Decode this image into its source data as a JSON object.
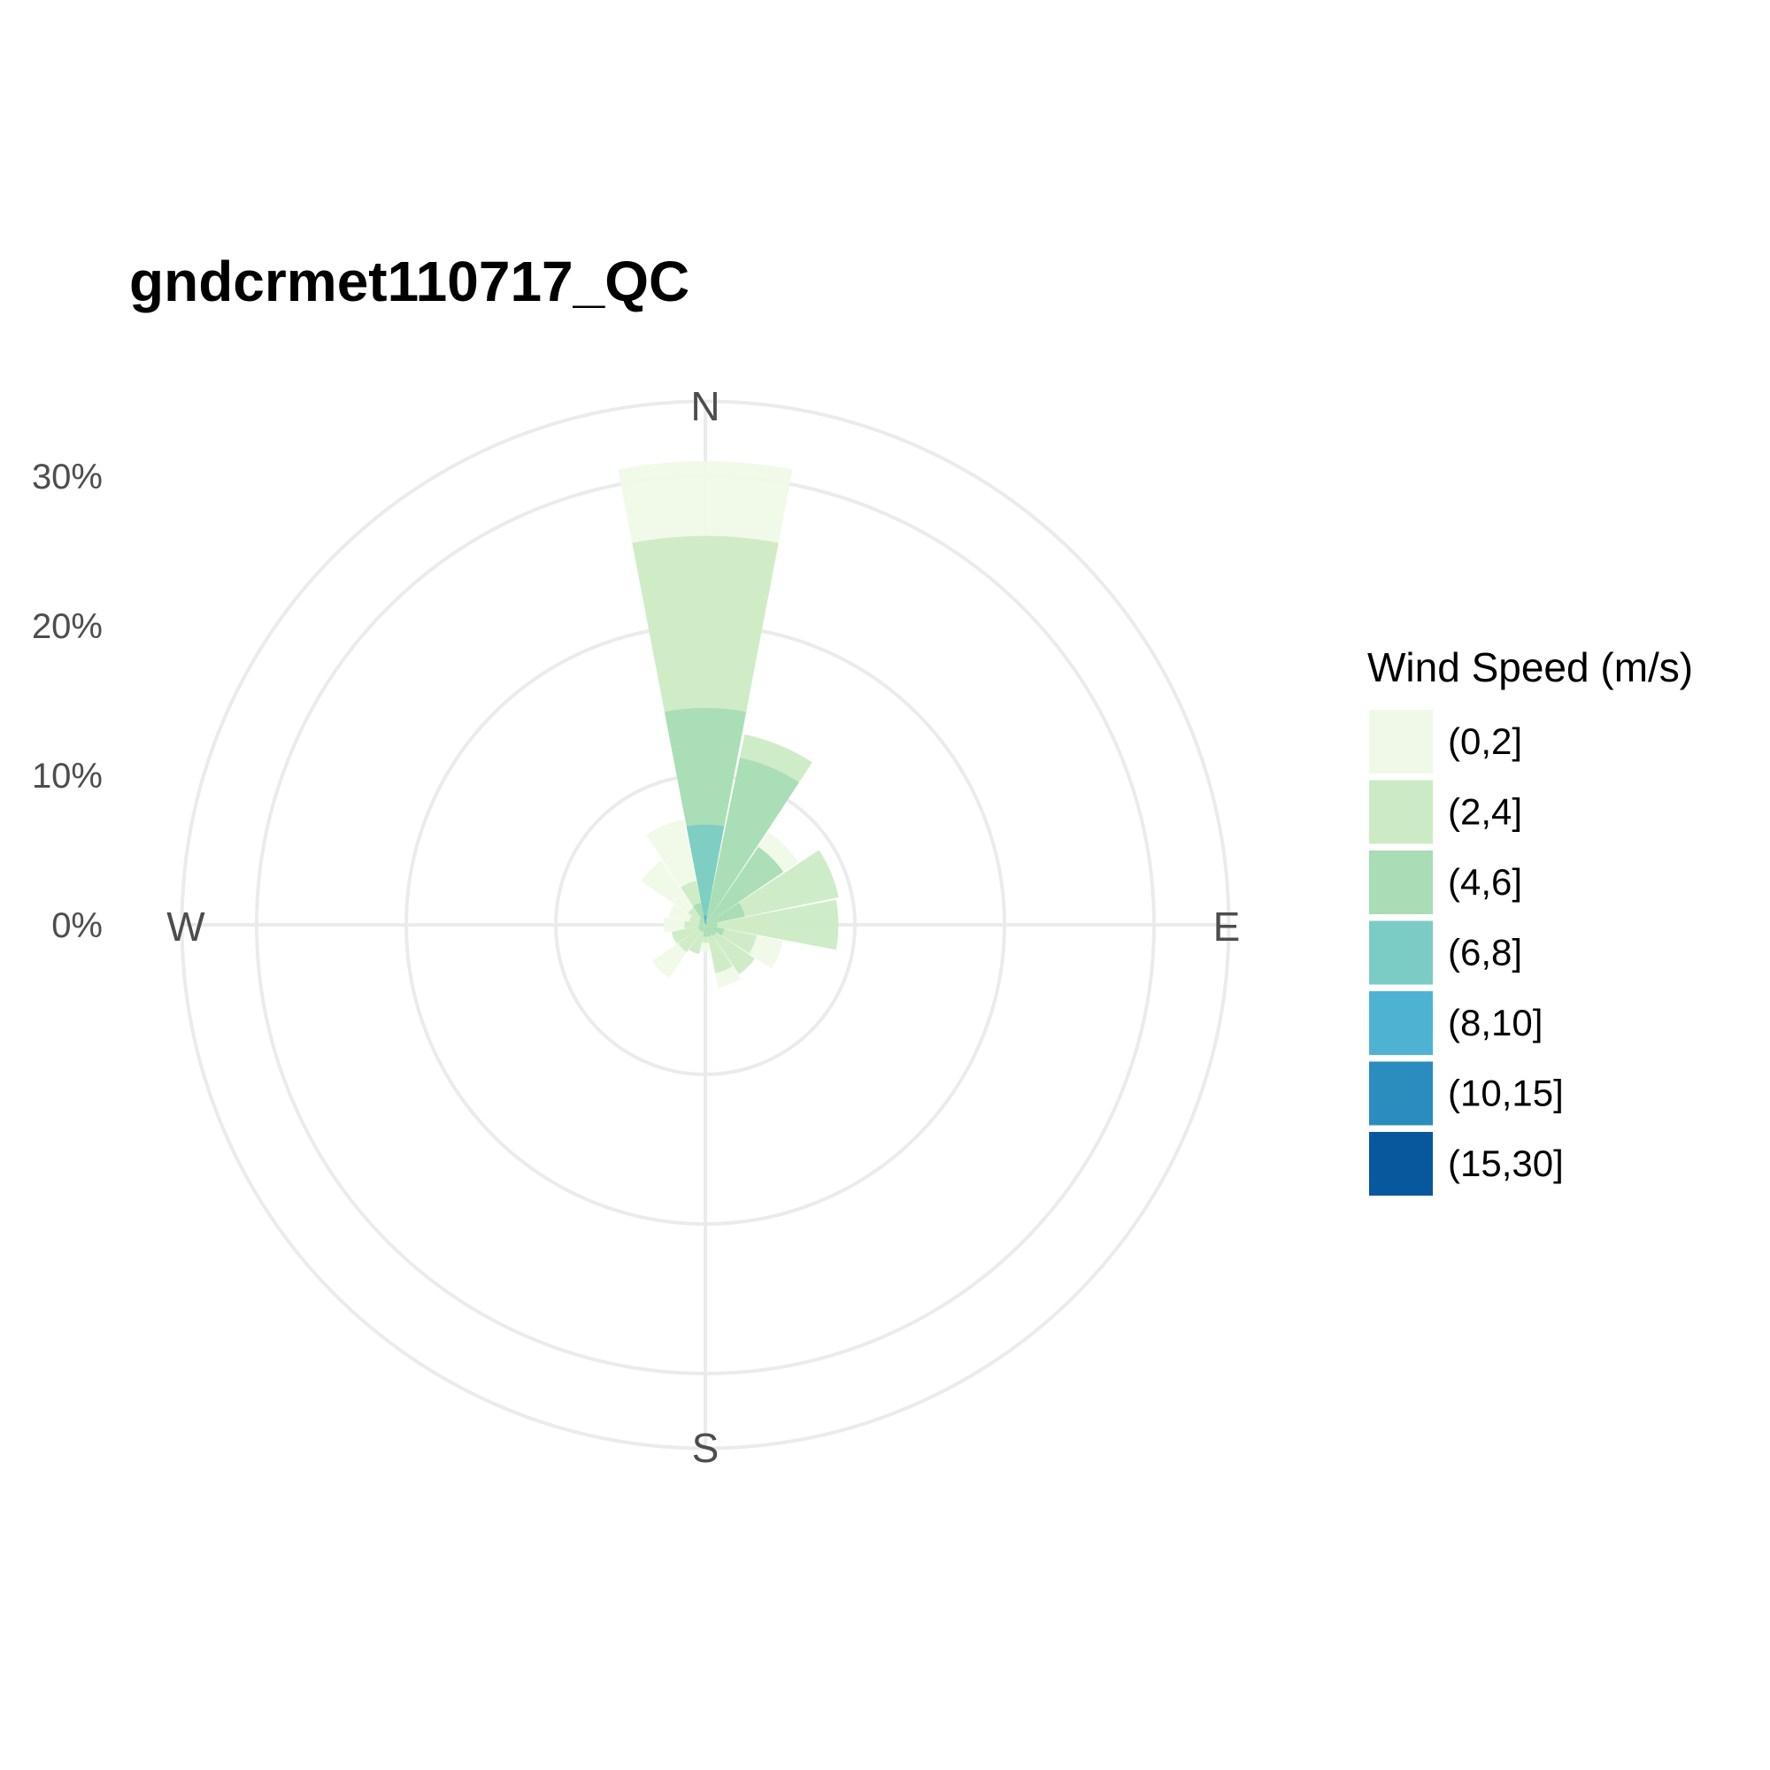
{
  "chart_data": {
    "type": "wind-rose",
    "title": "gndcrmet110717_QC",
    "radial_axis": {
      "ticks": [
        0,
        10,
        20,
        30
      ],
      "tick_labels": [
        "0%",
        "10%",
        "20%",
        "30%"
      ],
      "max": 35
    },
    "directions": [
      "N",
      "E",
      "S",
      "W"
    ],
    "legend": {
      "title": "Wind Speed (m/s)",
      "placement": "right",
      "bins": [
        "(0,2]",
        "(2,4]",
        "(4,6]",
        "(6,8]",
        "(8,10]",
        "(10,15]",
        "(15,30]"
      ],
      "colors": [
        "#f0f9e8",
        "#ccebc5",
        "#a8ddb5",
        "#7bccc4",
        "#4eb3d3",
        "#2b8cbe",
        "#08589e"
      ]
    },
    "sector_width_deg": 22.5,
    "sectors": [
      {
        "direction": 0,
        "cumulative": [
          31,
          26,
          14.5,
          6.7,
          0.6,
          0.2,
          0
        ]
      },
      {
        "direction": 22.5,
        "cumulative": [
          8,
          13,
          11.4,
          0.2,
          0.1,
          0,
          0
        ]
      },
      {
        "direction": 45,
        "cumulative": [
          7.5,
          3.4,
          6.3,
          0.15,
          0,
          0,
          0
        ]
      },
      {
        "direction": 67.5,
        "cumulative": [
          4.7,
          9.1,
          2.7,
          0.1,
          0,
          0,
          0
        ]
      },
      {
        "direction": 90,
        "cumulative": [
          5.0,
          8.9,
          0.8,
          0.1,
          0,
          0,
          0
        ]
      },
      {
        "direction": 112.5,
        "cumulative": [
          5.3,
          3.5,
          1.3,
          0.05,
          0,
          0,
          0
        ]
      },
      {
        "direction": 135,
        "cumulative": [
          1.5,
          4.0,
          0.9,
          0.05,
          0,
          0,
          0
        ]
      },
      {
        "direction": 157.5,
        "cumulative": [
          4.3,
          3.3,
          0.8,
          0.05,
          0,
          0,
          0
        ]
      },
      {
        "direction": 180,
        "cumulative": [
          1.8,
          1.2,
          0.8,
          0.05,
          0,
          0,
          0
        ]
      },
      {
        "direction": 202.5,
        "cumulative": [
          1.0,
          2.0,
          0.5,
          0.05,
          0,
          0,
          0
        ]
      },
      {
        "direction": 225,
        "cumulative": [
          4.3,
          2.2,
          0.5,
          0.05,
          0,
          0,
          0
        ]
      },
      {
        "direction": 247.5,
        "cumulative": [
          1.6,
          2.3,
          0.5,
          0.05,
          0,
          0,
          0
        ]
      },
      {
        "direction": 270,
        "cumulative": [
          2.8,
          1.4,
          0.4,
          0.05,
          0,
          0,
          0
        ]
      },
      {
        "direction": 292.5,
        "cumulative": [
          2.5,
          1.1,
          0.4,
          0.05,
          0,
          0,
          0
        ]
      },
      {
        "direction": 315,
        "cumulative": [
          5.2,
          1.4,
          0.5,
          0.05,
          0,
          0,
          0
        ]
      },
      {
        "direction": 337.5,
        "cumulative": [
          7.2,
          3.0,
          1.5,
          0.05,
          0,
          0,
          0
        ]
      }
    ]
  }
}
